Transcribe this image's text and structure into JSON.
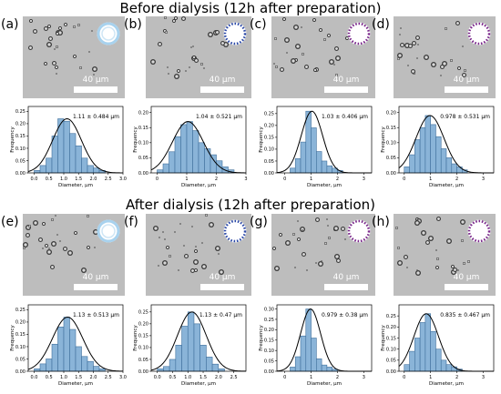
{
  "titles": {
    "before": "Before dialysis (12h after preparation)",
    "after": "After dialysis (12h after preparation)"
  },
  "scale_bar_label": "40 μm",
  "colors": {
    "bar_fill": "#8ab4d8",
    "bar_edge": "#3f6f9c",
    "fit_line": "#000000",
    "micrograph": "#bdbdbd"
  },
  "panels": [
    {
      "label": "(a)",
      "stat": "1.11 ± 0.484 μm",
      "icon": "hollow-ring-icon"
    },
    {
      "label": "(b)",
      "stat": "1.04 ± 0.521 μm",
      "icon": "dotted-blue-ring-icon"
    },
    {
      "label": "(c)",
      "stat": "1.03 ± 0.406 μm",
      "icon": "dotted-purple-ring-icon"
    },
    {
      "label": "(d)",
      "stat": "0.978 ± 0.531 μm",
      "icon": "dotted-purple-ring-icon"
    },
    {
      "label": "(e)",
      "stat": "1.13 ± 0.513 μm",
      "icon": "hollow-ring-icon"
    },
    {
      "label": "(f)",
      "stat": "1.13 ± 0.47 μm",
      "icon": "dotted-blue-ring-icon"
    },
    {
      "label": "(g)",
      "stat": "0.979 ± 0.38 μm",
      "icon": "dotted-purple-ring-icon"
    },
    {
      "label": "(h)",
      "stat": "0.835 ± 0.467 μm",
      "icon": "dotted-purple-ring-icon"
    }
  ],
  "chart_data": [
    {
      "type": "bar",
      "panel": "(a)",
      "xlabel": "Diameter, μm",
      "ylabel": "Frequency",
      "xlim": [
        -0.2,
        3.0
      ],
      "ylim": [
        0,
        0.27
      ],
      "xticks": [
        "0.0",
        "0.5",
        "1.0",
        "1.5",
        "2.0",
        "2.5",
        "3.0"
      ],
      "yticks": [
        "0.00",
        "0.05",
        "0.10",
        "0.15",
        "0.20",
        "0.25"
      ],
      "bin_start": 0.0,
      "bin_width": 0.2,
      "values": [
        0.01,
        0.03,
        0.06,
        0.15,
        0.22,
        0.21,
        0.16,
        0.11,
        0.06,
        0.03,
        0.02,
        0.01
      ],
      "fit": {
        "mean": 1.11,
        "sd": 0.484
      }
    },
    {
      "type": "bar",
      "panel": "(b)",
      "xlabel": "Diameter, μm",
      "ylabel": "Frequency",
      "xlim": [
        -0.2,
        3.0
      ],
      "ylim": [
        0,
        0.22
      ],
      "xticks": [
        "0",
        "1",
        "2",
        "3"
      ],
      "yticks": [
        "0.00",
        "0.05",
        "0.10",
        "0.15",
        "0.20"
      ],
      "bin_start": 0.0,
      "bin_width": 0.2,
      "values": [
        0.01,
        0.03,
        0.07,
        0.12,
        0.16,
        0.17,
        0.14,
        0.1,
        0.08,
        0.06,
        0.04,
        0.02,
        0.01
      ],
      "fit": {
        "mean": 1.04,
        "sd": 0.521
      }
    },
    {
      "type": "bar",
      "panel": "(c)",
      "xlabel": "Diameter, μm",
      "ylabel": "Frequency",
      "xlim": [
        -0.3,
        3.3
      ],
      "ylim": [
        0,
        0.28
      ],
      "xticks": [
        "0",
        "1",
        "2",
        "3"
      ],
      "yticks": [
        "0.00",
        "0.05",
        "0.10",
        "0.15",
        "0.20",
        "0.25"
      ],
      "bin_start": 0.2,
      "bin_width": 0.2,
      "values": [
        0.02,
        0.06,
        0.13,
        0.26,
        0.19,
        0.09,
        0.05,
        0.03,
        0.02,
        0.01
      ],
      "fit": {
        "mean": 1.03,
        "sd": 0.406
      }
    },
    {
      "type": "bar",
      "panel": "(d)",
      "xlabel": "Diameter, μm",
      "ylabel": "Frequency",
      "xlim": [
        -0.2,
        3.4
      ],
      "ylim": [
        0,
        0.22
      ],
      "xticks": [
        "0",
        "1",
        "2",
        "3"
      ],
      "yticks": [
        "0.00",
        "0.05",
        "0.10",
        "0.15",
        "0.20"
      ],
      "bin_start": 0.0,
      "bin_width": 0.2,
      "values": [
        0.02,
        0.06,
        0.11,
        0.15,
        0.19,
        0.16,
        0.12,
        0.08,
        0.05,
        0.03,
        0.02,
        0.01
      ],
      "fit": {
        "mean": 0.978,
        "sd": 0.531
      }
    },
    {
      "type": "bar",
      "panel": "(e)",
      "xlabel": "Diameter, μm",
      "ylabel": "Frequency",
      "xlim": [
        -0.2,
        3.0
      ],
      "ylim": [
        0,
        0.27
      ],
      "xticks": [
        "0.0",
        "0.5",
        "1.0",
        "1.5",
        "2.0",
        "2.5",
        "3.0"
      ],
      "yticks": [
        "0.00",
        "0.05",
        "0.10",
        "0.15",
        "0.20",
        "0.25"
      ],
      "bin_start": 0.0,
      "bin_width": 0.2,
      "values": [
        0.01,
        0.03,
        0.05,
        0.11,
        0.18,
        0.22,
        0.17,
        0.1,
        0.06,
        0.04,
        0.02,
        0.01
      ],
      "fit": {
        "mean": 1.13,
        "sd": 0.513
      }
    },
    {
      "type": "bar",
      "panel": "(f)",
      "xlabel": "Diameter, μm",
      "ylabel": "Frequency",
      "xlim": [
        -0.2,
        2.9
      ],
      "ylim": [
        0,
        0.28
      ],
      "xticks": [
        "0.0",
        "0.5",
        "1.0",
        "1.5",
        "2.0",
        "2.5"
      ],
      "yticks": [
        "0.00",
        "0.05",
        "0.10",
        "0.15",
        "0.20",
        "0.25"
      ],
      "bin_start": 0.0,
      "bin_width": 0.2,
      "values": [
        0.01,
        0.02,
        0.05,
        0.11,
        0.19,
        0.25,
        0.2,
        0.11,
        0.06,
        0.03,
        0.01
      ],
      "fit": {
        "mean": 1.13,
        "sd": 0.47
      }
    },
    {
      "type": "bar",
      "panel": "(g)",
      "xlabel": "Diameter, μm",
      "ylabel": "Frequency",
      "xlim": [
        -0.3,
        3.3
      ],
      "ylim": [
        0,
        0.32
      ],
      "xticks": [
        "0",
        "1",
        "2",
        "3"
      ],
      "yticks": [
        "0.00",
        "0.05",
        "0.10",
        "0.15",
        "0.20",
        "0.25",
        "0.30"
      ],
      "bin_start": 0.2,
      "bin_width": 0.2,
      "values": [
        0.02,
        0.07,
        0.17,
        0.3,
        0.16,
        0.06,
        0.03,
        0.02,
        0.01
      ],
      "fit": {
        "mean": 0.979,
        "sd": 0.38
      }
    },
    {
      "type": "bar",
      "panel": "(h)",
      "xlabel": "Diameter, μm",
      "ylabel": "Frequency",
      "xlim": [
        -0.2,
        3.4
      ],
      "ylim": [
        0,
        0.3
      ],
      "xticks": [
        "0",
        "1",
        "2",
        "3"
      ],
      "yticks": [
        "0.00",
        "0.05",
        "0.10",
        "0.15",
        "0.20",
        "0.25"
      ],
      "bin_start": 0.0,
      "bin_width": 0.2,
      "values": [
        0.03,
        0.09,
        0.15,
        0.22,
        0.26,
        0.18,
        0.1,
        0.05,
        0.03,
        0.02,
        0.01
      ],
      "fit": {
        "mean": 0.835,
        "sd": 0.467
      }
    }
  ]
}
